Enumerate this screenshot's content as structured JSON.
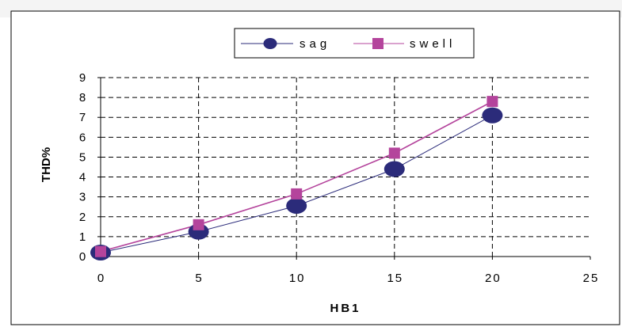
{
  "chart_data": {
    "type": "line",
    "x": [
      0,
      5,
      10,
      15,
      20
    ],
    "xlabel": "HB1",
    "ylabel": "THD%",
    "xlim": [
      0,
      25
    ],
    "ylim": [
      0,
      9
    ],
    "xticks": [
      "0",
      "5",
      "10",
      "15",
      "20",
      "25"
    ],
    "yticks": [
      "0",
      "1",
      "2",
      "3",
      "4",
      "5",
      "6",
      "7",
      "8",
      "9"
    ],
    "grid": true,
    "legend_position": "top",
    "series": [
      {
        "name": "sag",
        "values": [
          0.2,
          1.25,
          2.55,
          4.4,
          7.1
        ],
        "color": "#2b2b7a",
        "marker": "circle"
      },
      {
        "name": "swell",
        "values": [
          0.25,
          1.6,
          3.15,
          5.2,
          7.8
        ],
        "color": "#b4449c",
        "marker": "square"
      }
    ]
  }
}
